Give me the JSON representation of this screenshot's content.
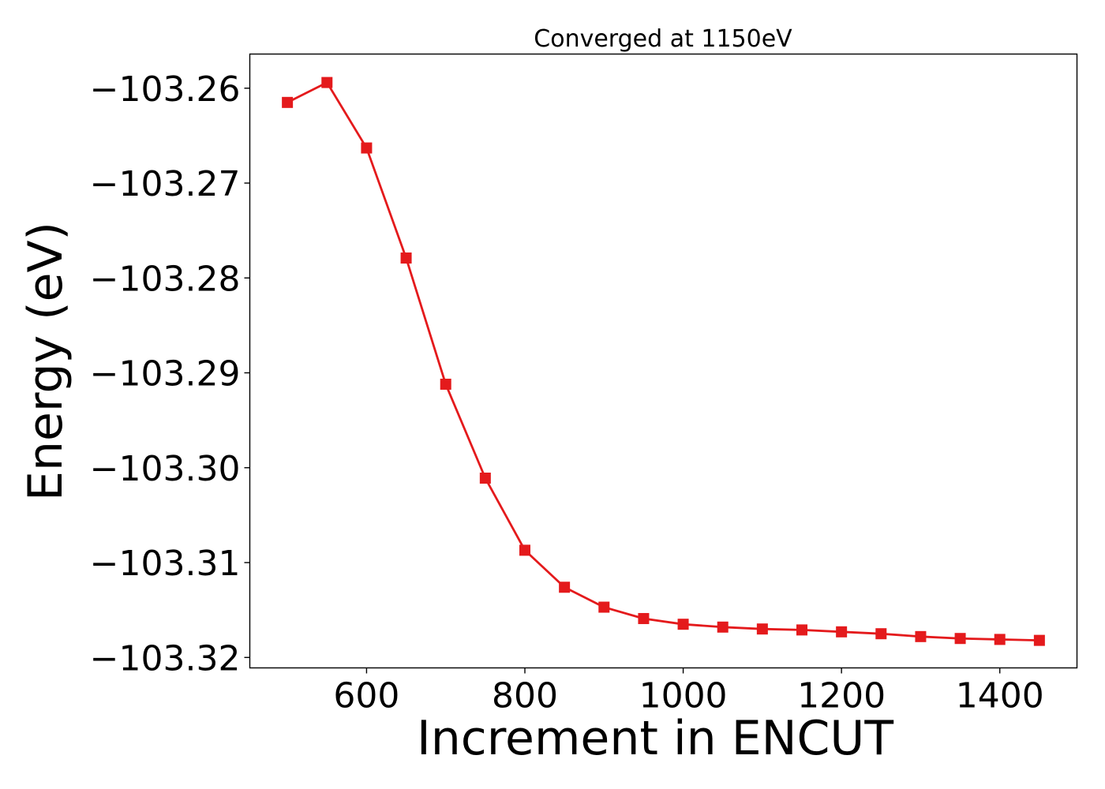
{
  "chart_data": {
    "type": "line",
    "title": "Converged at 1150eV",
    "xlabel": "Increment in ENCUT",
    "ylabel": "Energy (eV)",
    "x": [
      500,
      550,
      600,
      650,
      700,
      750,
      800,
      850,
      900,
      950,
      1000,
      1050,
      1100,
      1150,
      1200,
      1250,
      1300,
      1350,
      1400,
      1450
    ],
    "series": [
      {
        "values": [
          -103.2615,
          -103.2594,
          -103.2663,
          -103.2779,
          -103.2912,
          -103.3011,
          -103.3087,
          -103.3126,
          -103.3147,
          -103.3159,
          -103.3165,
          -103.3168,
          -103.317,
          -103.3171,
          -103.3173,
          -103.3175,
          -103.3178,
          -103.318,
          -103.3181,
          -103.3182
        ],
        "color": "#e41a1c",
        "marker": "square"
      }
    ],
    "xlim": [
      452.5,
      1497.5
    ],
    "ylim": [
      -103.3211,
      -103.2564
    ],
    "xticks": [
      600,
      800,
      1000,
      1200,
      1400
    ],
    "xtick_labels": [
      "600",
      "800",
      "1000",
      "1200",
      "1400"
    ],
    "yticks": [
      -103.32,
      -103.31,
      -103.3,
      -103.29,
      -103.28,
      -103.27,
      -103.26
    ],
    "ytick_labels": [
      "−103.32",
      "−103.31",
      "−103.30",
      "−103.29",
      "−103.28",
      "−103.27",
      "−103.26"
    ],
    "grid": false,
    "legend": false
  }
}
